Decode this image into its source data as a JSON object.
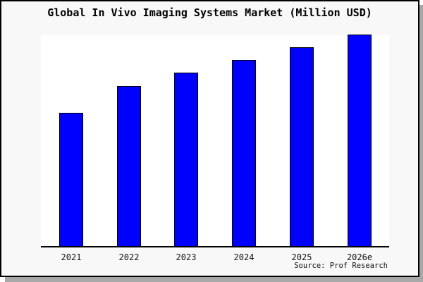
{
  "title": "Global In Vivo Imaging Systems Market (Million USD)",
  "source_note": "Source: Prof Research",
  "colors": {
    "bar_fill": "#0000ff",
    "bar_border": "#000000",
    "card_background": "#f8f8f8",
    "plot_background": "#ffffff",
    "frame_border": "#000000",
    "drop_shadow": "#a8a8a8",
    "text": "#000000"
  },
  "chart_data": {
    "type": "bar",
    "title": "Global In Vivo Imaging Systems Market (Million USD)",
    "categories": [
      "2021",
      "2022",
      "2023",
      "2024",
      "2025",
      "2026e"
    ],
    "values": [
      63,
      75.5,
      82,
      88,
      94,
      100
    ],
    "values_unit": "relative index (no y-axis scale shown; 2026e bar = 100)",
    "xlabel": "",
    "ylabel": "",
    "ylim": [
      0,
      100.5
    ],
    "grid": false,
    "legend_position": "none",
    "y_axis_ticks_visible": false,
    "bar_color": "#0000ff",
    "bar_border_color": "#000000",
    "annotations": [
      "Source: Prof Research"
    ]
  }
}
